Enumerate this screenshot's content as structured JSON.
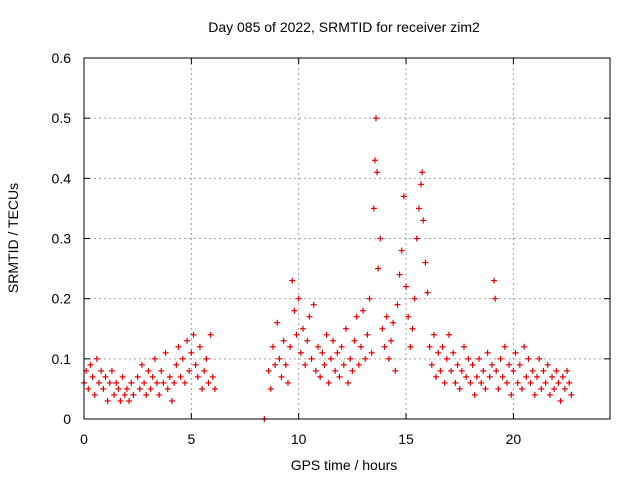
{
  "chart_data": {
    "type": "scatter",
    "title": "Day 085 of 2022, SRMTID for receiver zim2",
    "xlabel": "GPS time / hours",
    "ylabel": "SRMTID / TECUs",
    "xlim": [
      0,
      24.5
    ],
    "ylim": [
      0,
      0.6
    ],
    "x_ticks": [
      0,
      5,
      10,
      15,
      20
    ],
    "y_ticks": [
      0,
      0.1,
      0.2,
      0.3,
      0.4,
      0.5,
      0.6
    ],
    "x_tick_labels": [
      "0",
      "5",
      "10",
      "15",
      "20"
    ],
    "y_tick_labels": [
      "0",
      "0.1",
      "0.2",
      "0.3",
      "0.4",
      "0.5",
      "0.6"
    ],
    "grid": true,
    "marker": "+",
    "marker_color": "#e00000",
    "series": [
      {
        "name": "SRMTID",
        "points": [
          [
            0.0,
            0.06
          ],
          [
            0.1,
            0.08
          ],
          [
            0.2,
            0.05
          ],
          [
            0.3,
            0.09
          ],
          [
            0.4,
            0.07
          ],
          [
            0.5,
            0.04
          ],
          [
            0.6,
            0.1
          ],
          [
            0.7,
            0.06
          ],
          [
            0.8,
            0.08
          ],
          [
            0.9,
            0.05
          ],
          [
            1.0,
            0.07
          ],
          [
            1.1,
            0.03
          ],
          [
            1.2,
            0.06
          ],
          [
            1.3,
            0.08
          ],
          [
            1.4,
            0.04
          ],
          [
            1.5,
            0.06
          ],
          [
            1.6,
            0.05
          ],
          [
            1.7,
            0.03
          ],
          [
            1.8,
            0.07
          ],
          [
            1.9,
            0.04
          ],
          [
            2.0,
            0.05
          ],
          [
            2.1,
            0.03
          ],
          [
            2.2,
            0.06
          ],
          [
            2.3,
            0.04
          ],
          [
            2.5,
            0.07
          ],
          [
            2.6,
            0.05
          ],
          [
            2.7,
            0.09
          ],
          [
            2.8,
            0.06
          ],
          [
            2.9,
            0.04
          ],
          [
            3.0,
            0.08
          ],
          [
            3.1,
            0.05
          ],
          [
            3.2,
            0.07
          ],
          [
            3.3,
            0.1
          ],
          [
            3.4,
            0.06
          ],
          [
            3.5,
            0.04
          ],
          [
            3.6,
            0.08
          ],
          [
            3.7,
            0.06
          ],
          [
            3.8,
            0.11
          ],
          [
            3.9,
            0.05
          ],
          [
            4.0,
            0.07
          ],
          [
            4.1,
            0.03
          ],
          [
            4.2,
            0.06
          ],
          [
            4.3,
            0.09
          ],
          [
            4.4,
            0.12
          ],
          [
            4.5,
            0.07
          ],
          [
            4.6,
            0.1
          ],
          [
            4.7,
            0.06
          ],
          [
            4.8,
            0.13
          ],
          [
            4.9,
            0.08
          ],
          [
            5.0,
            0.11
          ],
          [
            5.1,
            0.14
          ],
          [
            5.2,
            0.09
          ],
          [
            5.3,
            0.07
          ],
          [
            5.4,
            0.12
          ],
          [
            5.5,
            0.05
          ],
          [
            5.6,
            0.08
          ],
          [
            5.7,
            0.1
          ],
          [
            5.8,
            0.06
          ],
          [
            5.9,
            0.14
          ],
          [
            6.0,
            0.07
          ],
          [
            6.1,
            0.05
          ],
          [
            8.4,
            0.0
          ],
          [
            8.6,
            0.08
          ],
          [
            8.7,
            0.05
          ],
          [
            8.8,
            0.12
          ],
          [
            8.9,
            0.09
          ],
          [
            9.0,
            0.16
          ],
          [
            9.1,
            0.1
          ],
          [
            9.2,
            0.07
          ],
          [
            9.3,
            0.13
          ],
          [
            9.4,
            0.09
          ],
          [
            9.5,
            0.06
          ],
          [
            9.6,
            0.12
          ],
          [
            9.7,
            0.23
          ],
          [
            9.8,
            0.18
          ],
          [
            9.9,
            0.14
          ],
          [
            10.0,
            0.2
          ],
          [
            10.1,
            0.11
          ],
          [
            10.2,
            0.15
          ],
          [
            10.3,
            0.09
          ],
          [
            10.4,
            0.13
          ],
          [
            10.5,
            0.17
          ],
          [
            10.6,
            0.1
          ],
          [
            10.7,
            0.19
          ],
          [
            10.8,
            0.08
          ],
          [
            10.9,
            0.12
          ],
          [
            11.0,
            0.07
          ],
          [
            11.1,
            0.11
          ],
          [
            11.2,
            0.09
          ],
          [
            11.3,
            0.14
          ],
          [
            11.4,
            0.06
          ],
          [
            11.5,
            0.1
          ],
          [
            11.6,
            0.13
          ],
          [
            11.7,
            0.08
          ],
          [
            11.8,
            0.11
          ],
          [
            11.9,
            0.07
          ],
          [
            12.0,
            0.12
          ],
          [
            12.1,
            0.09
          ],
          [
            12.2,
            0.15
          ],
          [
            12.3,
            0.06
          ],
          [
            12.4,
            0.1
          ],
          [
            12.5,
            0.08
          ],
          [
            12.6,
            0.13
          ],
          [
            12.7,
            0.17
          ],
          [
            12.8,
            0.09
          ],
          [
            12.9,
            0.12
          ],
          [
            13.0,
            0.18
          ],
          [
            13.1,
            0.1
          ],
          [
            13.2,
            0.14
          ],
          [
            13.3,
            0.2
          ],
          [
            13.4,
            0.11
          ],
          [
            13.5,
            0.35
          ],
          [
            13.55,
            0.43
          ],
          [
            13.6,
            0.5
          ],
          [
            13.65,
            0.41
          ],
          [
            13.7,
            0.25
          ],
          [
            13.8,
            0.3
          ],
          [
            13.9,
            0.15
          ],
          [
            14.0,
            0.12
          ],
          [
            14.1,
            0.17
          ],
          [
            14.2,
            0.1
          ],
          [
            14.3,
            0.13
          ],
          [
            14.4,
            0.16
          ],
          [
            14.5,
            0.08
          ],
          [
            14.6,
            0.19
          ],
          [
            14.7,
            0.24
          ],
          [
            14.8,
            0.28
          ],
          [
            14.9,
            0.37
          ],
          [
            15.0,
            0.22
          ],
          [
            15.1,
            0.17
          ],
          [
            15.2,
            0.12
          ],
          [
            15.3,
            0.15
          ],
          [
            15.4,
            0.2
          ],
          [
            15.5,
            0.3
          ],
          [
            15.6,
            0.35
          ],
          [
            15.7,
            0.39
          ],
          [
            15.75,
            0.41
          ],
          [
            15.8,
            0.33
          ],
          [
            15.9,
            0.26
          ],
          [
            16.0,
            0.21
          ],
          [
            16.1,
            0.12
          ],
          [
            16.2,
            0.09
          ],
          [
            16.3,
            0.14
          ],
          [
            16.4,
            0.07
          ],
          [
            16.5,
            0.11
          ],
          [
            16.6,
            0.08
          ],
          [
            16.7,
            0.12
          ],
          [
            16.8,
            0.06
          ],
          [
            16.9,
            0.1
          ],
          [
            17.0,
            0.14
          ],
          [
            17.1,
            0.08
          ],
          [
            17.2,
            0.11
          ],
          [
            17.3,
            0.06
          ],
          [
            17.4,
            0.09
          ],
          [
            17.5,
            0.05
          ],
          [
            17.6,
            0.08
          ],
          [
            17.7,
            0.12
          ],
          [
            17.8,
            0.07
          ],
          [
            17.9,
            0.1
          ],
          [
            18.0,
            0.06
          ],
          [
            18.1,
            0.09
          ],
          [
            18.2,
            0.04
          ],
          [
            18.3,
            0.07
          ],
          [
            18.4,
            0.1
          ],
          [
            18.5,
            0.06
          ],
          [
            18.6,
            0.08
          ],
          [
            18.7,
            0.05
          ],
          [
            18.8,
            0.11
          ],
          [
            18.9,
            0.07
          ],
          [
            19.0,
            0.09
          ],
          [
            19.1,
            0.23
          ],
          [
            19.15,
            0.2
          ],
          [
            19.2,
            0.08
          ],
          [
            19.3,
            0.05
          ],
          [
            19.4,
            0.1
          ],
          [
            19.5,
            0.07
          ],
          [
            19.6,
            0.12
          ],
          [
            19.7,
            0.06
          ],
          [
            19.8,
            0.09
          ],
          [
            19.9,
            0.04
          ],
          [
            20.0,
            0.08
          ],
          [
            20.1,
            0.11
          ],
          [
            20.2,
            0.06
          ],
          [
            20.3,
            0.09
          ],
          [
            20.4,
            0.05
          ],
          [
            20.5,
            0.12
          ],
          [
            20.6,
            0.07
          ],
          [
            20.7,
            0.1
          ],
          [
            20.8,
            0.06
          ],
          [
            20.9,
            0.08
          ],
          [
            21.0,
            0.04
          ],
          [
            21.1,
            0.07
          ],
          [
            21.2,
            0.1
          ],
          [
            21.3,
            0.05
          ],
          [
            21.4,
            0.08
          ],
          [
            21.5,
            0.06
          ],
          [
            21.6,
            0.09
          ],
          [
            21.7,
            0.04
          ],
          [
            21.8,
            0.07
          ],
          [
            21.9,
            0.05
          ],
          [
            22.0,
            0.08
          ],
          [
            22.1,
            0.06
          ],
          [
            22.2,
            0.03
          ],
          [
            22.3,
            0.07
          ],
          [
            22.4,
            0.05
          ],
          [
            22.5,
            0.08
          ],
          [
            22.6,
            0.06
          ],
          [
            22.7,
            0.04
          ]
        ]
      }
    ]
  }
}
